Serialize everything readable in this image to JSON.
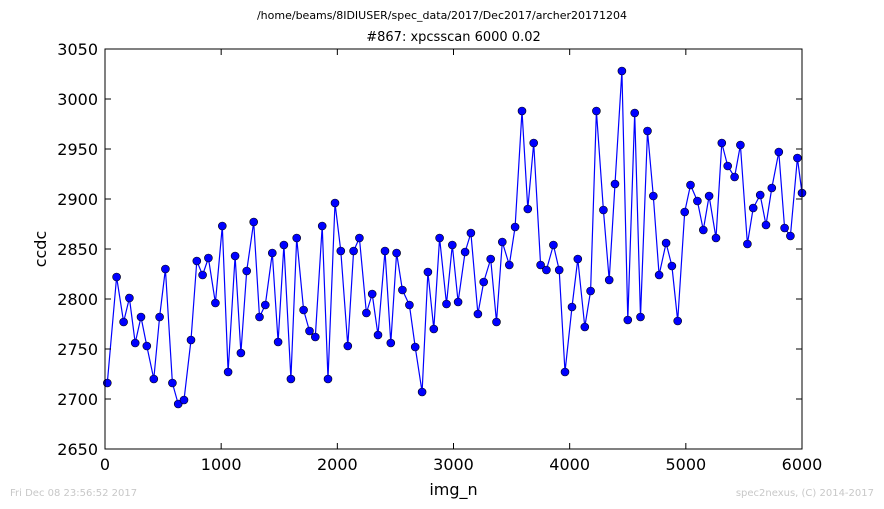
{
  "suptitle": "/home/beams/8IDIUSER/spec_data/2017/Dec2017/archer20171204",
  "footer": {
    "timestamp": "Fri Dec 08 23:56:52 2017",
    "credit": "spec2nexus, (C) 2014-2017"
  },
  "chart_data": {
    "type": "line",
    "title": "#867: xpcsscan 6000 0.02",
    "xlabel": "img_n",
    "ylabel": "ccdc",
    "xlim": [
      0,
      6000
    ],
    "ylim": [
      2650,
      3050
    ],
    "xticks": [
      0,
      1000,
      2000,
      3000,
      4000,
      5000,
      6000
    ],
    "yticks": [
      2650,
      2700,
      2750,
      2800,
      2850,
      2900,
      2950,
      3000,
      3050
    ],
    "grid": false,
    "legend": "none",
    "color": "#0000ff",
    "marker": "circle",
    "series": [
      {
        "x": [
          20,
          100,
          160,
          210,
          260,
          310,
          360,
          420,
          470,
          520,
          580,
          630,
          680,
          740,
          790,
          840,
          890,
          950,
          1010,
          1060,
          1120,
          1170,
          1220,
          1280,
          1330,
          1380,
          1440,
          1490,
          1540,
          1600,
          1650,
          1710,
          1760,
          1810,
          1870,
          1920,
          1980,
          2030,
          2090,
          2140,
          2190,
          2250,
          2300,
          2350,
          2410,
          2460,
          2510,
          2560,
          2620,
          2670,
          2730,
          2780,
          2830,
          2880,
          2940,
          2990,
          3040,
          3100,
          3150,
          3210,
          3260,
          3320,
          3370,
          3420,
          3480,
          3530,
          3590,
          3640,
          3690,
          3750,
          3800,
          3860,
          3910,
          3960,
          4020,
          4070,
          4130,
          4180,
          4230,
          4290,
          4340,
          4390,
          4450,
          4500,
          4560,
          4610,
          4670,
          4720,
          4770,
          4830,
          4880,
          4930,
          4990,
          5040,
          5100,
          5150,
          5200,
          5260,
          5310,
          5360,
          5420,
          5470,
          5530,
          5580,
          5640,
          5690,
          5740,
          5800,
          5850,
          5900,
          5960,
          6000
        ],
        "y": [
          2716,
          2822,
          2777,
          2801,
          2756,
          2782,
          2753,
          2720,
          2782,
          2830,
          2716,
          2695,
          2699,
          2759,
          2838,
          2824,
          2841,
          2796,
          2873,
          2727,
          2843,
          2746,
          2828,
          2877,
          2782,
          2794,
          2846,
          2757,
          2854,
          2720,
          2861,
          2789,
          2768,
          2762,
          2873,
          2720,
          2896,
          2848,
          2753,
          2848,
          2861,
          2786,
          2805,
          2764,
          2848,
          2756,
          2846,
          2809,
          2794,
          2752,
          2707,
          2827,
          2770,
          2861,
          2795,
          2854,
          2797,
          2847,
          2866,
          2785,
          2817,
          2840,
          2777,
          2857,
          2834,
          2872,
          2988,
          2890,
          2956,
          2834,
          2829,
          2854,
          2829,
          2727,
          2792,
          2840,
          2772,
          2808,
          2988,
          2889,
          2819,
          2915,
          3028,
          2779,
          2986,
          2782,
          2968,
          2903,
          2824,
          2856,
          2833,
          2778,
          2887,
          2914,
          2898,
          2869,
          2903,
          2861,
          2956,
          2933,
          2922,
          2954,
          2855,
          2891,
          2904,
          2874,
          2911,
          2947,
          2871,
          2863,
          2941,
          2906
        ]
      }
    ]
  }
}
